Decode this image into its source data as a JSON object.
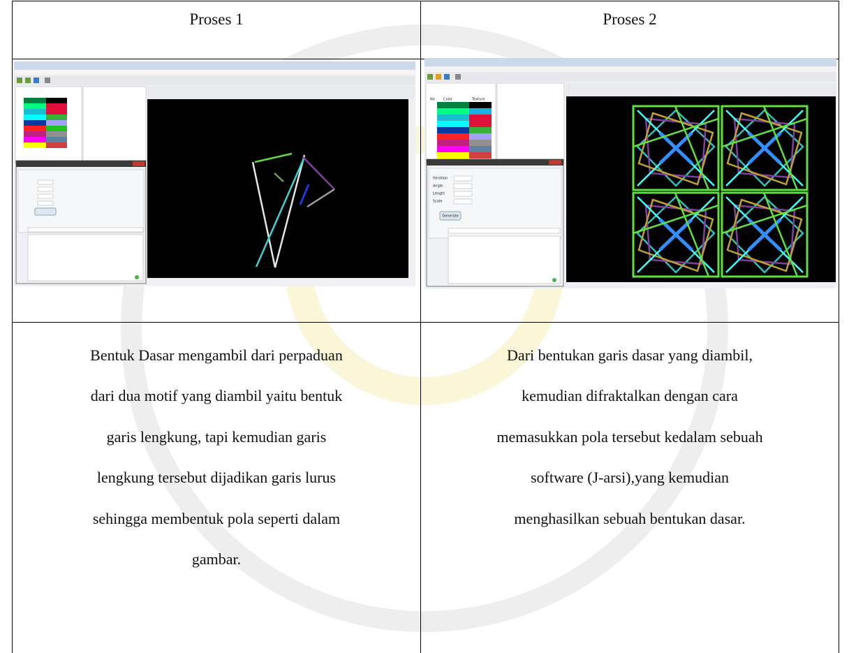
{
  "table": {
    "header": [
      "Proses 1",
      "Proses 2"
    ],
    "descriptions": [
      [
        "Bentuk Dasar mengambil dari perpaduan",
        "dari dua motif yang diambil yaitu bentuk",
        "garis lengkung, tapi kemudian garis",
        "lengkung tersebut dijadikan garis lurus",
        "sehingga membentuk pola seperti dalam",
        "gambar."
      ],
      [
        "Dari bentukan garis dasar yang diambil,",
        "kemudian difraktalkan dengan cara",
        "memasukkan pola tersebut kedalam sebuah",
        "software (J-arsi),yang kemudian",
        "menghasilkan sebuah bentukan dasar."
      ]
    ]
  },
  "screenshot_2": {
    "table_headers": [
      "No",
      "Color",
      "Texture"
    ],
    "fields": [
      "Iteration",
      "Angle",
      "Length",
      "Scale"
    ],
    "button": "Generate"
  }
}
